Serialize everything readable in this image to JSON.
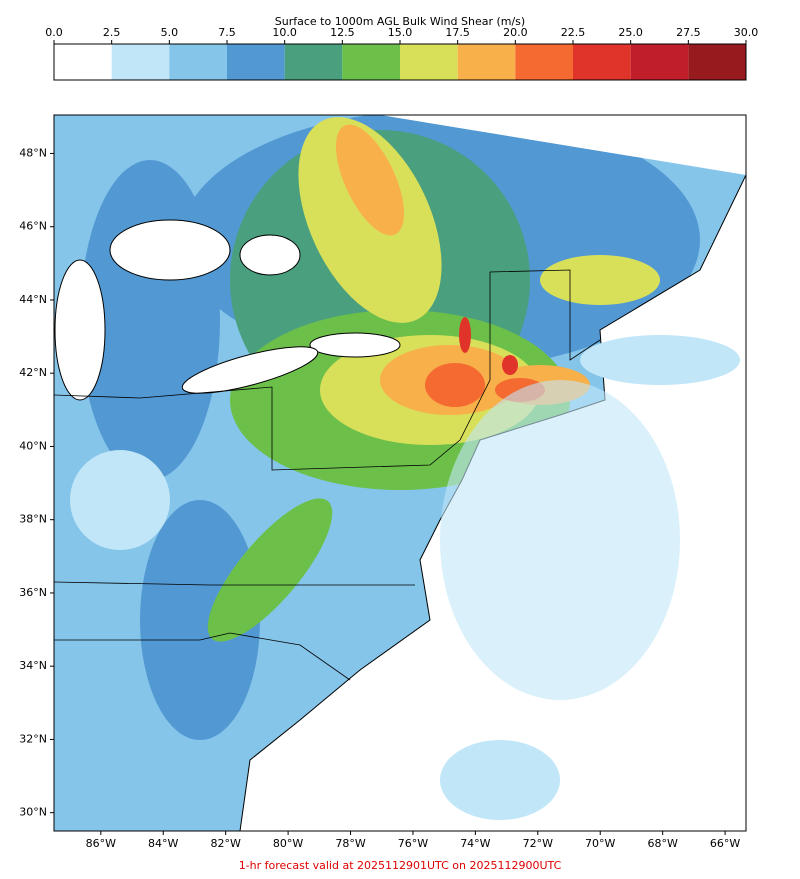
{
  "colorbar": {
    "title": "Surface to 1000m AGL Bulk Wind Shear (m/s)",
    "lim": [
      0,
      30
    ],
    "ticks": [
      {
        "value": 0,
        "label": "0.0"
      },
      2.5,
      {
        "value": 5,
        "label": "5.0"
      },
      7.5,
      {
        "value": 10,
        "label": "10.0"
      },
      12.5,
      {
        "value": 15,
        "label": "15.0"
      },
      17.5,
      {
        "value": 20,
        "label": "20.0"
      },
      22.5,
      {
        "value": 25,
        "label": "25.0"
      },
      27.5,
      {
        "value": 30,
        "label": "30.0"
      }
    ],
    "colors": [
      "#ffffff",
      "#c1e6f8",
      "#85c5ea",
      "#5298d3",
      "#4aa07e",
      "#6cc04a",
      "#d8e05a",
      "#f8b04a",
      "#f46a30",
      "#e0342a",
      "#c01e2a",
      "#961a1e"
    ]
  },
  "map": {
    "xlim": [
      -87.5,
      -65.33
    ],
    "ylim": [
      29.5,
      49.05
    ],
    "xticks": [
      {
        "value": -86,
        "label": "86°W"
      },
      {
        "value": -84,
        "label": "84°W"
      },
      {
        "value": -82,
        "label": "82°W"
      },
      {
        "value": -80,
        "label": "80°W"
      },
      {
        "value": -78,
        "label": "78°W"
      },
      {
        "value": -76,
        "label": "76°W"
      },
      {
        "value": -74,
        "label": "74°W"
      },
      {
        "value": -72,
        "label": "72°W"
      },
      {
        "value": -70,
        "label": "70°W"
      },
      {
        "value": -68,
        "label": "68°W"
      },
      {
        "value": -66,
        "label": "66°W"
      }
    ],
    "yticks": [
      {
        "value": 30,
        "label": "30°N"
      },
      {
        "value": 32,
        "label": "32°N"
      },
      {
        "value": 34,
        "label": "34°N"
      },
      {
        "value": 36,
        "label": "36°N"
      },
      {
        "value": 38,
        "label": "38°N"
      },
      {
        "value": 40,
        "label": "40°N"
      },
      {
        "value": 42,
        "label": "42°N"
      },
      {
        "value": 44,
        "label": "44°N"
      },
      {
        "value": 46,
        "label": "46°N"
      },
      {
        "value": 48,
        "label": "48°N"
      }
    ]
  },
  "footer": "1-hr forecast valid at 2025112901UTC on 2025112900UTC"
}
